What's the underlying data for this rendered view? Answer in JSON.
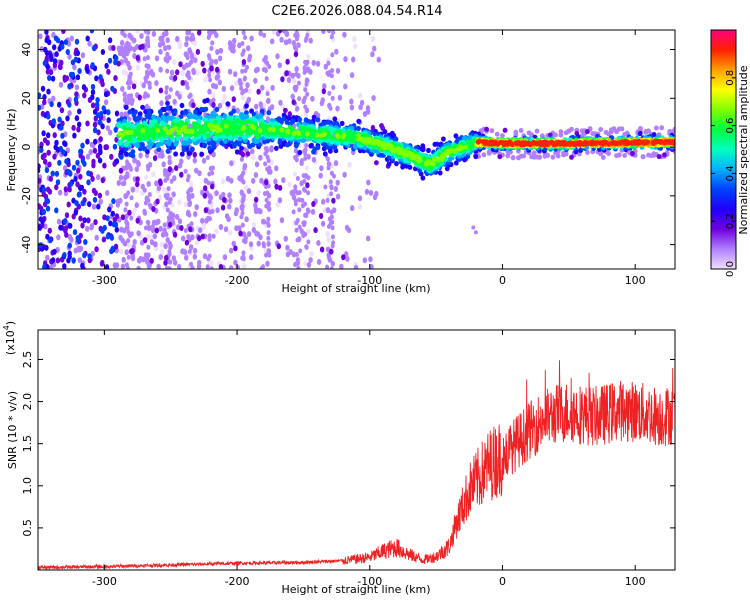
{
  "figure_title": "C2E6.2026.088.04.54.R14",
  "chart_data": [
    {
      "type": "heatmap",
      "title": "C2E6.2026.088.04.54.R14",
      "xlabel": "Height of straight line (km)",
      "ylabel": "Frequency (Hz)",
      "xlim": [
        -350,
        130
      ],
      "ylim": [
        -50,
        48
      ],
      "xticks": [
        -300,
        -200,
        -100,
        0,
        100
      ],
      "xtick_labels": [
        "-300",
        "-200",
        "-100",
        "0",
        "100"
      ],
      "yticks": [
        40,
        20,
        0,
        -20,
        -40
      ],
      "ytick_labels": [
        "40",
        "20",
        "0",
        "-20",
        "-40"
      ],
      "colorbar": {
        "label": "Normalized spectral amplitude",
        "range": [
          0,
          1
        ],
        "ticks": [
          0.0,
          0.2,
          0.4,
          0.6,
          0.8
        ],
        "tick_labels": [
          "0.0",
          "0.2",
          "0.4",
          "0.6",
          "0.8"
        ],
        "colormap": [
          "#f0e0ff",
          "#b080ff",
          "#7000e0",
          "#2000ff",
          "#0040ff",
          "#00b0ff",
          "#00ffc0",
          "#00ff40",
          "#80ff00",
          "#ffff00",
          "#ffa000",
          "#ff2000",
          "#ff0080"
        ]
      },
      "ridge_center_hz": [
        {
          "x": -290,
          "y": 5
        },
        {
          "x": -250,
          "y": 7
        },
        {
          "x": -200,
          "y": 8
        },
        {
          "x": -150,
          "y": 6
        },
        {
          "x": -110,
          "y": 4
        },
        {
          "x": -80,
          "y": -1
        },
        {
          "x": -55,
          "y": -7
        },
        {
          "x": -40,
          "y": -2
        },
        {
          "x": -20,
          "y": 2
        },
        {
          "x": 0,
          "y": 1.5
        },
        {
          "x": 50,
          "y": 1.5
        },
        {
          "x": 130,
          "y": 2
        }
      ]
    },
    {
      "type": "line",
      "xlabel": "Height of straight line (km)",
      "ylabel": "SNR (10 * v/v)",
      "y_multiplier": "(x10",
      "y_multiplier_exp": "4",
      "y_multiplier_close": ")",
      "xlim": [
        -350,
        130
      ],
      "ylim": [
        0,
        2.85
      ],
      "xticks": [
        -300,
        -200,
        -100,
        0,
        100
      ],
      "xtick_labels": [
        "-300",
        "-200",
        "-100",
        "0",
        "100"
      ],
      "yticks": [
        0.5,
        1.0,
        1.5,
        2.0,
        2.5
      ],
      "ytick_labels": [
        "0.5",
        "1.0",
        "1.5",
        "2.0",
        "2.5"
      ],
      "line_color": "#ee2222",
      "series": [
        {
          "name": "SNR",
          "x": [
            -350,
            -300,
            -250,
            -200,
            -150,
            -120,
            -100,
            -90,
            -80,
            -70,
            -60,
            -50,
            -40,
            -35,
            -30,
            -25,
            -20,
            -15,
            -10,
            -5,
            0,
            10,
            20,
            30,
            40,
            50,
            60,
            70,
            80,
            90,
            100,
            110,
            120,
            130
          ],
          "y": [
            0.03,
            0.04,
            0.06,
            0.08,
            0.09,
            0.11,
            0.15,
            0.22,
            0.27,
            0.18,
            0.12,
            0.16,
            0.28,
            0.55,
            0.75,
            0.95,
            1.05,
            1.15,
            1.25,
            1.3,
            1.35,
            1.5,
            1.65,
            1.78,
            1.85,
            1.88,
            1.85,
            1.82,
            1.86,
            1.9,
            1.88,
            1.85,
            1.82,
            1.85
          ]
        }
      ]
    }
  ]
}
